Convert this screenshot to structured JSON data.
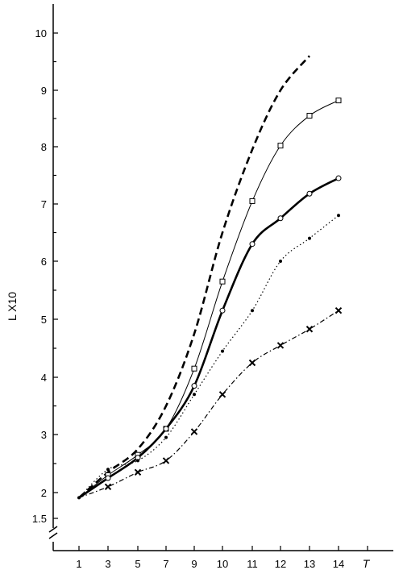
{
  "chart_data": {
    "type": "line",
    "ylabel": "L X10",
    "xlabel": "T",
    "x_ticks": [
      1,
      3,
      5,
      7,
      9,
      10,
      11,
      12,
      13,
      14
    ],
    "y_ticks": [
      1.5,
      2,
      3,
      4,
      5,
      6,
      7,
      8,
      9,
      10
    ],
    "y_axis_break": true,
    "grid": false,
    "series": [
      {
        "style": "dashed-bold",
        "marker": "none",
        "points": [
          [
            1,
            1.9
          ],
          [
            3,
            2.35
          ],
          [
            5,
            2.75
          ],
          [
            7,
            3.5
          ],
          [
            9,
            4.75
          ],
          [
            10,
            6.5
          ],
          [
            11,
            7.95
          ],
          [
            12,
            9.0
          ],
          [
            13,
            9.6
          ]
        ]
      },
      {
        "style": "thin-solid",
        "marker": "square",
        "points": [
          [
            1,
            1.9
          ],
          [
            3,
            2.3
          ],
          [
            5,
            2.65
          ],
          [
            7,
            3.1
          ],
          [
            9,
            4.15
          ],
          [
            10,
            5.65
          ],
          [
            11,
            7.05
          ],
          [
            12,
            8.02
          ],
          [
            13,
            8.55
          ],
          [
            14,
            8.82
          ]
        ]
      },
      {
        "style": "bold-solid",
        "marker": "circle",
        "points": [
          [
            1,
            1.9
          ],
          [
            3,
            2.25
          ],
          [
            5,
            2.6
          ],
          [
            7,
            3.1
          ],
          [
            9,
            3.85
          ],
          [
            10,
            5.15
          ],
          [
            11,
            6.3
          ],
          [
            12,
            6.75
          ],
          [
            13,
            7.18
          ],
          [
            14,
            7.45
          ]
        ]
      },
      {
        "style": "dotted",
        "marker": "dot",
        "points": [
          [
            1,
            1.9
          ],
          [
            3,
            2.4
          ],
          [
            5,
            2.55
          ],
          [
            7,
            2.95
          ],
          [
            9,
            3.7
          ],
          [
            10,
            4.45
          ],
          [
            11,
            5.15
          ],
          [
            12,
            6.0
          ],
          [
            13,
            6.4
          ],
          [
            14,
            6.8
          ]
        ]
      },
      {
        "style": "dash-dot",
        "marker": "x",
        "points": [
          [
            1,
            1.9
          ],
          [
            3,
            2.1
          ],
          [
            5,
            2.35
          ],
          [
            7,
            2.55
          ],
          [
            9,
            3.05
          ],
          [
            10,
            3.7
          ],
          [
            11,
            4.25
          ],
          [
            12,
            4.55
          ],
          [
            13,
            4.83
          ],
          [
            14,
            5.15
          ]
        ]
      }
    ]
  }
}
